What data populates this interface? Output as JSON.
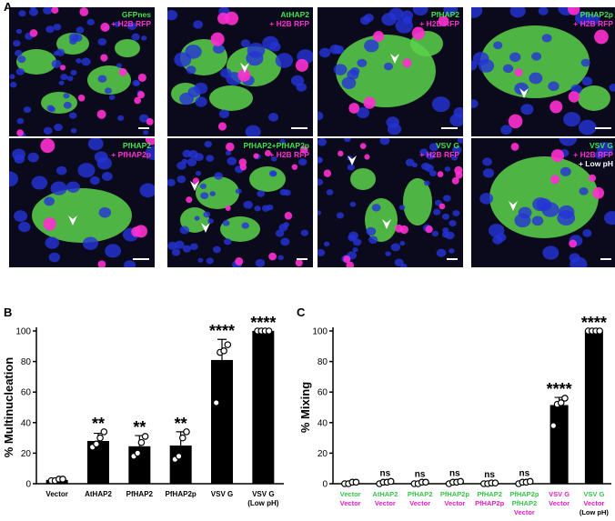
{
  "figure": {
    "panel_a_letter": "A",
    "panel_b_letter": "B",
    "panel_c_letter": "C"
  },
  "micrographs": [
    {
      "id": "gfpnes",
      "labels": [
        {
          "text": "GFPnes",
          "color": "green"
        },
        {
          "text": "+ H2B RFP",
          "color": "magenta"
        }
      ]
    },
    {
      "id": "athap2",
      "labels": [
        {
          "text": "AtHAP2",
          "color": "green"
        },
        {
          "text": "+ H2B RFP",
          "color": "magenta"
        }
      ]
    },
    {
      "id": "pfhap2",
      "labels": [
        {
          "text": "PfHAP2",
          "color": "green"
        },
        {
          "text": "+ H2B RFP",
          "color": "magenta"
        }
      ]
    },
    {
      "id": "pfhap2p",
      "labels": [
        {
          "text": "PfHAP2p",
          "color": "green"
        },
        {
          "text": "+ H2B RFP",
          "color": "magenta"
        }
      ]
    },
    {
      "id": "pfhap2-pfhap2p",
      "labels": [
        {
          "text": "PfHAP2",
          "color": "green"
        },
        {
          "text": "+ PfHAP2p",
          "color": "magenta"
        }
      ]
    },
    {
      "id": "pfhap2plus",
      "labels": [
        {
          "text": "PfHAP2+PfHAP2p",
          "color": "green"
        },
        {
          "text": "+ H2B RFP",
          "color": "magenta"
        }
      ]
    },
    {
      "id": "vsvg",
      "labels": [
        {
          "text": "VSV G",
          "color": "green"
        },
        {
          "text": "+ H2B RFP",
          "color": "magenta"
        }
      ]
    },
    {
      "id": "vsvg-lowph",
      "labels": [
        {
          "text": "VSV G",
          "color": "green"
        },
        {
          "text": "+ H2B RFP",
          "color": "magenta"
        },
        {
          "text": "+ Low pH",
          "color": "white"
        }
      ]
    }
  ],
  "colors": {
    "green_label": "#41e34a",
    "magenta_label": "#ff2fd0",
    "nuclei": "#2433d8",
    "gfp": "#5bd24a",
    "rfp": "#ff2fd0",
    "bar": "#000000"
  },
  "chart_data": [
    {
      "type": "bar",
      "panel": "B",
      "ylabel": "% Multinucleation",
      "ylim": [
        0,
        100
      ],
      "yticks": [
        0,
        20,
        40,
        60,
        80,
        100
      ],
      "categories": [
        {
          "lines": [
            {
              "text": "Vector",
              "color": "black"
            }
          ]
        },
        {
          "lines": [
            {
              "text": "AtHAP2",
              "color": "black"
            }
          ]
        },
        {
          "lines": [
            {
              "text": "PfHAP2",
              "color": "black"
            }
          ]
        },
        {
          "lines": [
            {
              "text": "PfHAP2p",
              "color": "black"
            }
          ]
        },
        {
          "lines": [
            {
              "text": "VSV G",
              "color": "black"
            }
          ]
        },
        {
          "lines": [
            {
              "text": "VSV G",
              "color": "black"
            },
            {
              "text": "(Low pH)",
              "color": "black"
            }
          ]
        }
      ],
      "values": [
        2.5,
        28,
        24.5,
        25,
        81,
        100
      ],
      "errors": [
        1,
        5,
        7,
        9,
        13.5,
        0
      ],
      "points": [
        [
          2,
          2,
          3,
          3
        ],
        [
          24,
          26,
          30,
          34
        ],
        [
          18,
          20,
          27,
          31
        ],
        [
          16,
          18,
          30,
          34
        ],
        [
          53,
          86,
          87,
          91
        ],
        [
          100,
          100,
          100,
          100
        ]
      ],
      "significance": [
        "",
        "**",
        "**",
        "**",
        "****",
        "****"
      ]
    },
    {
      "type": "bar",
      "panel": "C",
      "ylabel": "% Mixing",
      "ylim": [
        0,
        100
      ],
      "yticks": [
        0,
        20,
        40,
        60,
        80,
        100
      ],
      "categories": [
        {
          "lines": [
            {
              "text": "Vector",
              "color": "green"
            },
            {
              "text": "Vector",
              "color": "magenta"
            }
          ]
        },
        {
          "lines": [
            {
              "text": "AtHAP2",
              "color": "green"
            },
            {
              "text": "Vector",
              "color": "magenta"
            }
          ]
        },
        {
          "lines": [
            {
              "text": "PfHAP2",
              "color": "green"
            },
            {
              "text": "Vector",
              "color": "magenta"
            }
          ]
        },
        {
          "lines": [
            {
              "text": "PfHAP2p",
              "color": "green"
            },
            {
              "text": "Vector",
              "color": "magenta"
            }
          ]
        },
        {
          "lines": [
            {
              "text": "PfHAP2",
              "color": "green"
            },
            {
              "text": "PfHAP2p",
              "color": "magenta"
            }
          ]
        },
        {
          "lines": [
            {
              "text": "PfHAP2p",
              "color": "green"
            },
            {
              "text": "PfHAP2",
              "color": "green"
            },
            {
              "text": "Vector",
              "color": "magenta"
            }
          ]
        },
        {
          "lines": [
            {
              "text": "VSV G",
              "color": "magenta"
            },
            {
              "text": "Vector",
              "color": "magenta"
            }
          ]
        },
        {
          "lines": [
            {
              "text": "VSV G",
              "color": "green"
            },
            {
              "text": "Vector",
              "color": "magenta"
            },
            {
              "text": "(Low pH)",
              "color": "black"
            }
          ]
        }
      ],
      "values": [
        0.5,
        0.8,
        0.5,
        0.8,
        0.3,
        0.8,
        51.5,
        100
      ],
      "errors": [
        0.5,
        0.8,
        0.5,
        0.8,
        0.3,
        0.8,
        5,
        0
      ],
      "points": [
        [
          0,
          0,
          1,
          1
        ],
        [
          0,
          1,
          1,
          1.5
        ],
        [
          0,
          0,
          1,
          1
        ],
        [
          0,
          1,
          1,
          1.5
        ],
        [
          0,
          0,
          0.5,
          0.5
        ],
        [
          0,
          1,
          1,
          1.5
        ],
        [
          38,
          52,
          53,
          56
        ],
        [
          100,
          100,
          100,
          100
        ]
      ],
      "significance": [
        "",
        "ns",
        "ns",
        "ns",
        "ns",
        "ns",
        "****",
        "****"
      ]
    }
  ]
}
